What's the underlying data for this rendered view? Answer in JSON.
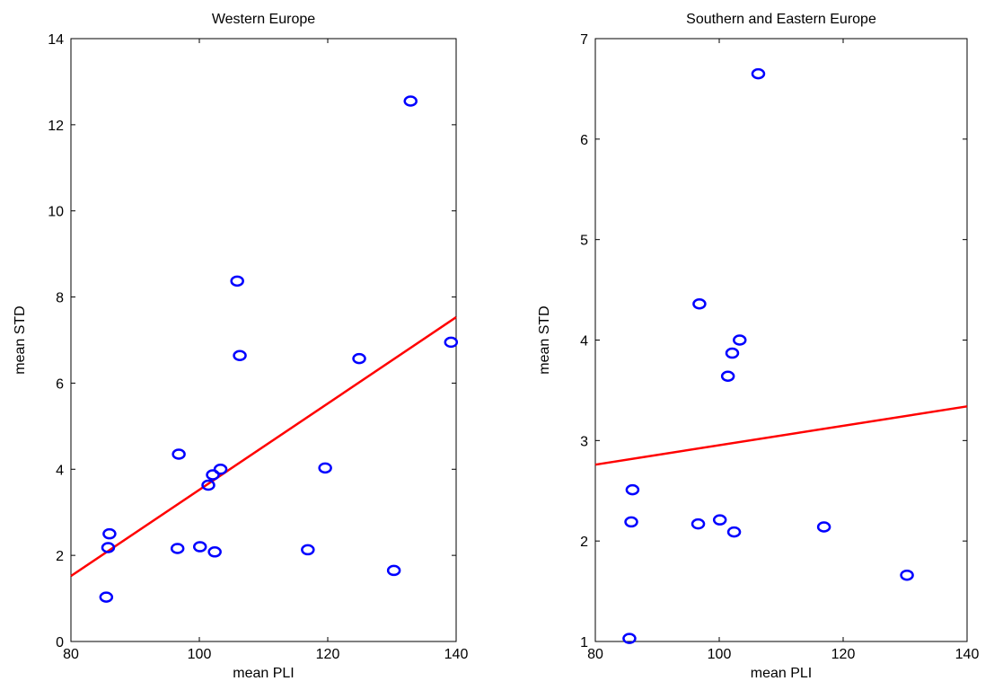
{
  "chart_data": [
    {
      "type": "scatter",
      "title": "Western Europe",
      "xlabel": "mean PLI",
      "ylabel": "mean STD",
      "xlim": [
        80,
        140
      ],
      "ylim": [
        0,
        14
      ],
      "xticks": [
        80,
        100,
        120,
        140
      ],
      "yticks": [
        0,
        2,
        4,
        6,
        8,
        10,
        12,
        14
      ],
      "grid": false,
      "colors": {
        "points": "#0000ff",
        "fit_line": "#ff0000"
      },
      "marker": "circle-open",
      "points": [
        {
          "x": 85.5,
          "y": 1.03
        },
        {
          "x": 85.8,
          "y": 2.18
        },
        {
          "x": 86.0,
          "y": 2.5
        },
        {
          "x": 96.6,
          "y": 2.16
        },
        {
          "x": 96.8,
          "y": 4.35
        },
        {
          "x": 100.1,
          "y": 2.2
        },
        {
          "x": 101.4,
          "y": 3.63
        },
        {
          "x": 102.1,
          "y": 3.87
        },
        {
          "x": 102.4,
          "y": 2.08
        },
        {
          "x": 103.3,
          "y": 4.0
        },
        {
          "x": 105.9,
          "y": 8.37
        },
        {
          "x": 106.3,
          "y": 6.64
        },
        {
          "x": 116.9,
          "y": 2.13
        },
        {
          "x": 119.6,
          "y": 4.03
        },
        {
          "x": 124.9,
          "y": 6.57
        },
        {
          "x": 130.3,
          "y": 1.65
        },
        {
          "x": 132.9,
          "y": 12.55
        },
        {
          "x": 139.2,
          "y": 6.95
        }
      ],
      "fit_line": {
        "x": [
          80,
          140
        ],
        "y": [
          1.52,
          7.53
        ]
      }
    },
    {
      "type": "scatter",
      "title": "Southern and Eastern Europe",
      "xlabel": "mean PLI",
      "ylabel": "mean STD",
      "xlim": [
        80,
        140
      ],
      "ylim": [
        1,
        7
      ],
      "xticks": [
        80,
        100,
        120,
        140
      ],
      "yticks": [
        1,
        2,
        3,
        4,
        5,
        6,
        7
      ],
      "grid": false,
      "colors": {
        "points": "#0000ff",
        "fit_line": "#ff0000"
      },
      "marker": "circle-open",
      "points": [
        {
          "x": 85.5,
          "y": 1.03
        },
        {
          "x": 85.8,
          "y": 2.19
        },
        {
          "x": 86.0,
          "y": 2.51
        },
        {
          "x": 96.6,
          "y": 2.17
        },
        {
          "x": 96.8,
          "y": 4.36
        },
        {
          "x": 100.1,
          "y": 2.21
        },
        {
          "x": 101.4,
          "y": 3.64
        },
        {
          "x": 102.1,
          "y": 3.87
        },
        {
          "x": 102.4,
          "y": 2.09
        },
        {
          "x": 103.3,
          "y": 4.0
        },
        {
          "x": 106.3,
          "y": 6.65
        },
        {
          "x": 116.9,
          "y": 2.14
        },
        {
          "x": 130.3,
          "y": 1.66
        }
      ],
      "fit_line": {
        "x": [
          80,
          140
        ],
        "y": [
          2.76,
          3.34
        ]
      }
    }
  ]
}
